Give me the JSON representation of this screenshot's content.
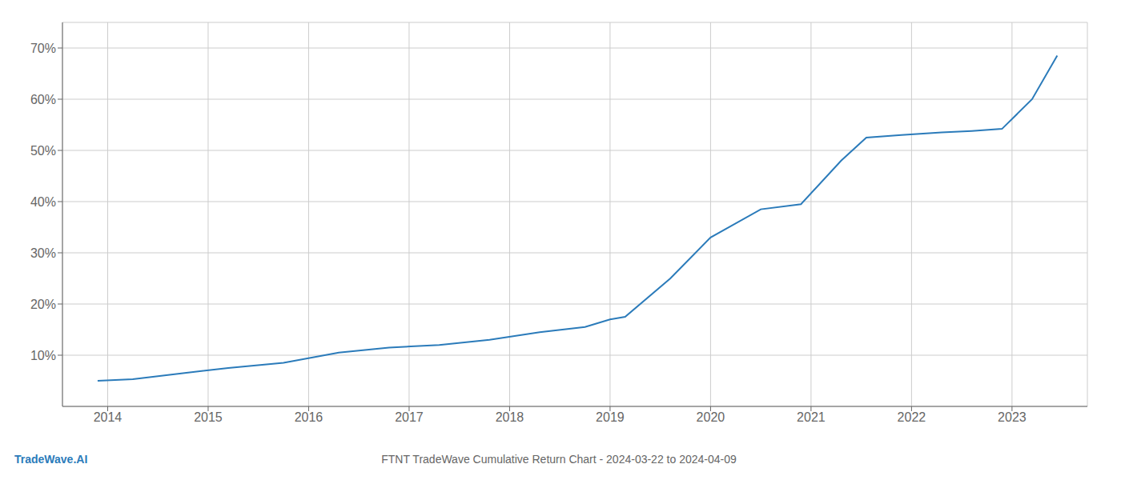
{
  "chart_data": {
    "type": "line",
    "title": "FTNT TradeWave Cumulative Return Chart - 2024-03-22 to 2024-04-09",
    "annotations": [
      "TradeWave.AI"
    ],
    "color": "#2b7bba",
    "x": [
      2013.9,
      2014.25,
      2014.75,
      2015.2,
      2015.75,
      2016.3,
      2016.8,
      2017.3,
      2017.8,
      2018.3,
      2018.75,
      2019.0,
      2019.15,
      2019.6,
      2020.0,
      2020.5,
      2020.9,
      2021.3,
      2021.55,
      2021.9,
      2022.3,
      2022.6,
      2022.9,
      2023.2,
      2023.45
    ],
    "values": [
      5.0,
      5.3,
      6.5,
      7.5,
      8.5,
      10.5,
      11.5,
      12.0,
      13.0,
      14.5,
      15.5,
      17.0,
      17.5,
      25.0,
      33.0,
      38.5,
      39.5,
      48.0,
      52.5,
      53.0,
      53.5,
      53.8,
      54.2,
      60.0,
      68.5
    ],
    "xlim": [
      2013.55,
      2023.75
    ],
    "xticks": [
      2014,
      2015,
      2016,
      2017,
      2018,
      2019,
      2020,
      2021,
      2022,
      2023
    ],
    "ylim": [
      0,
      75
    ],
    "yticks": [
      {
        "value": 10,
        "label": "10%"
      },
      {
        "value": 20,
        "label": "20%"
      },
      {
        "value": 30,
        "label": "30%"
      },
      {
        "value": 40,
        "label": "40%"
      },
      {
        "value": 50,
        "label": "50%"
      },
      {
        "value": 60,
        "label": "60%"
      },
      {
        "value": 70,
        "label": "70%"
      }
    ],
    "grid": true
  }
}
